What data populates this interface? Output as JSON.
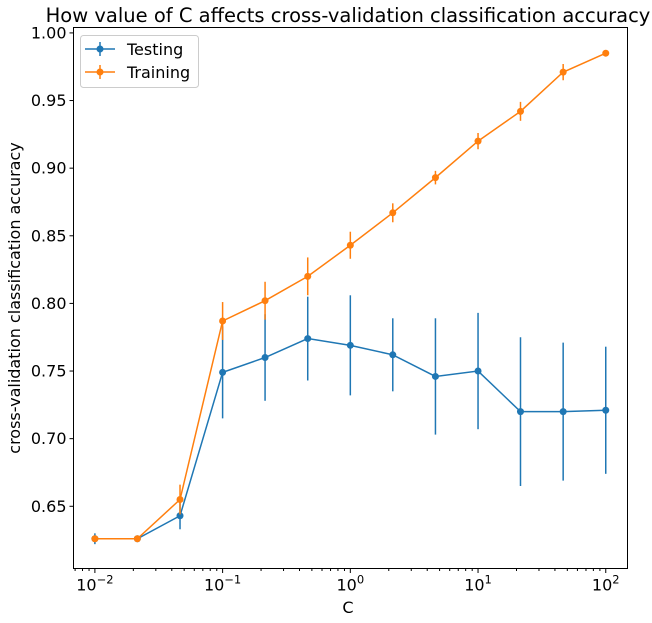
{
  "chart_data": {
    "type": "line",
    "title": "How value of C affects cross-validation classification accuracy",
    "xlabel": "C",
    "ylabel": "cross-validation classification accuracy",
    "xscale": "log",
    "xlim": [
      0.0068,
      148
    ],
    "ylim": [
      0.604,
      1.004
    ],
    "x": [
      0.01,
      0.0215,
      0.0464,
      0.1,
      0.215,
      0.464,
      1,
      2.15,
      4.64,
      10,
      21.5,
      46.4,
      100
    ],
    "xticks": [
      {
        "value": 0.01,
        "base": "10",
        "exp": "−2"
      },
      {
        "value": 0.1,
        "base": "10",
        "exp": "−1"
      },
      {
        "value": 1,
        "base": "10",
        "exp": "0"
      },
      {
        "value": 10,
        "base": "10",
        "exp": "1"
      },
      {
        "value": 100,
        "base": "10",
        "exp": "2"
      }
    ],
    "yticks": [
      {
        "value": 0.65,
        "label": "0.65"
      },
      {
        "value": 0.7,
        "label": "0.70"
      },
      {
        "value": 0.75,
        "label": "0.75"
      },
      {
        "value": 0.8,
        "label": "0.80"
      },
      {
        "value": 0.85,
        "label": "0.85"
      },
      {
        "value": 0.9,
        "label": "0.90"
      },
      {
        "value": 0.95,
        "label": "0.95"
      },
      {
        "value": 1.0,
        "label": "1.00"
      }
    ],
    "legend_position": "upper-left",
    "series": [
      {
        "name": "Testing",
        "color": "#1f77b4",
        "values": [
          0.626,
          0.626,
          0.643,
          0.749,
          0.76,
          0.774,
          0.769,
          0.762,
          0.746,
          0.75,
          0.72,
          0.72,
          0.721
        ],
        "errors": [
          0.004,
          0.001,
          0.01,
          0.034,
          0.032,
          0.031,
          0.037,
          0.027,
          0.043,
          0.043,
          0.055,
          0.051,
          0.047
        ]
      },
      {
        "name": "Training",
        "color": "#ff7f0e",
        "values": [
          0.626,
          0.626,
          0.655,
          0.787,
          0.802,
          0.82,
          0.843,
          0.867,
          0.893,
          0.92,
          0.942,
          0.971,
          0.985
        ],
        "errors": [
          0.002,
          0.001,
          0.011,
          0.014,
          0.014,
          0.014,
          0.01,
          0.007,
          0.005,
          0.006,
          0.007,
          0.006,
          0.002
        ]
      }
    ]
  }
}
